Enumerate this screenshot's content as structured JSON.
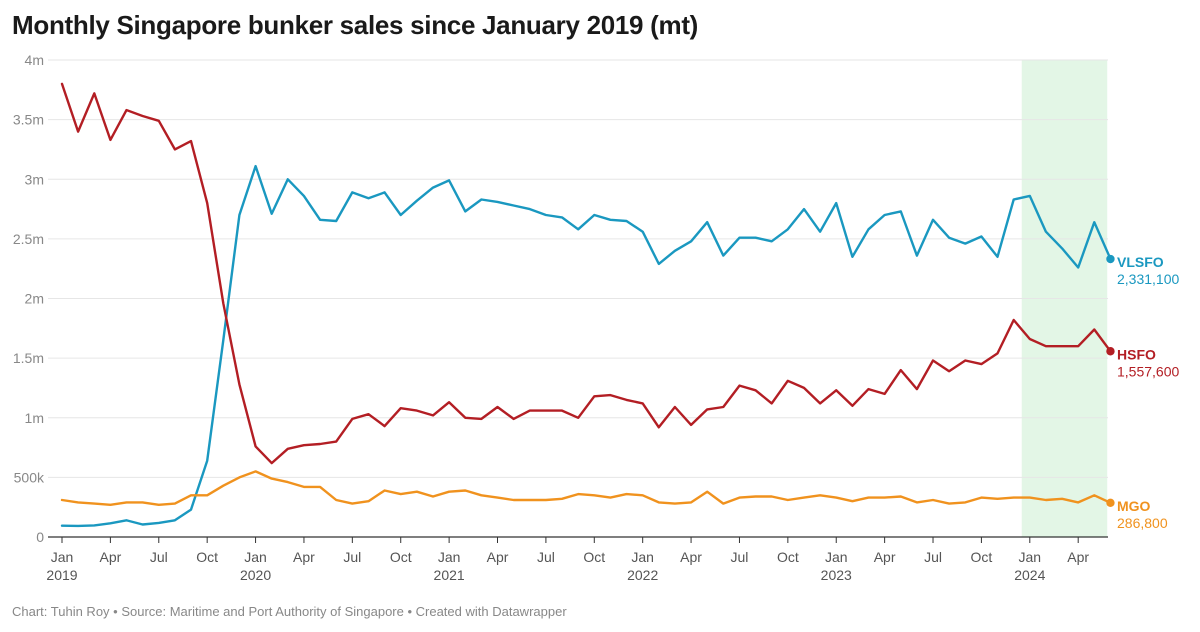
{
  "title": "Monthly Singapore bunker sales since January 2019 (mt)",
  "footer": "Chart: Tuhin Roy • Source: Maritime and Port Authority of Singapore • Created with Datawrapper",
  "chart_data": {
    "type": "line",
    "title": "Monthly Singapore bunker sales since January 2019 (mt)",
    "xlabel": "",
    "ylabel": "",
    "ylim": [
      0,
      4000000
    ],
    "yticks": [
      {
        "value": 0,
        "label": "0"
      },
      {
        "value": 500000,
        "label": "500k"
      },
      {
        "value": 1000000,
        "label": "1m"
      },
      {
        "value": 1500000,
        "label": "1.5m"
      },
      {
        "value": 2000000,
        "label": "2m"
      },
      {
        "value": 2500000,
        "label": "2.5m"
      },
      {
        "value": 3000000,
        "label": "3m"
      },
      {
        "value": 3500000,
        "label": "3.5m"
      },
      {
        "value": 4000000,
        "label": "4m"
      }
    ],
    "xticks": [
      {
        "index": 0,
        "label": "Jan",
        "year": "2019"
      },
      {
        "index": 3,
        "label": "Apr",
        "year": ""
      },
      {
        "index": 6,
        "label": "Jul",
        "year": ""
      },
      {
        "index": 9,
        "label": "Oct",
        "year": ""
      },
      {
        "index": 12,
        "label": "Jan",
        "year": "2020"
      },
      {
        "index": 15,
        "label": "Apr",
        "year": ""
      },
      {
        "index": 18,
        "label": "Jul",
        "year": ""
      },
      {
        "index": 21,
        "label": "Oct",
        "year": ""
      },
      {
        "index": 24,
        "label": "Jan",
        "year": "2021"
      },
      {
        "index": 27,
        "label": "Apr",
        "year": ""
      },
      {
        "index": 30,
        "label": "Jul",
        "year": ""
      },
      {
        "index": 33,
        "label": "Oct",
        "year": ""
      },
      {
        "index": 36,
        "label": "Jan",
        "year": "2022"
      },
      {
        "index": 39,
        "label": "Apr",
        "year": ""
      },
      {
        "index": 42,
        "label": "Jul",
        "year": ""
      },
      {
        "index": 45,
        "label": "Oct",
        "year": ""
      },
      {
        "index": 48,
        "label": "Jan",
        "year": "2023"
      },
      {
        "index": 51,
        "label": "Apr",
        "year": ""
      },
      {
        "index": 54,
        "label": "Jul",
        "year": ""
      },
      {
        "index": 57,
        "label": "Oct",
        "year": ""
      },
      {
        "index": 60,
        "label": "Jan",
        "year": "2024"
      },
      {
        "index": 63,
        "label": "Apr",
        "year": ""
      }
    ],
    "highlight_range": [
      59.5,
      64.8
    ],
    "highlight_color": "#e3f6e6",
    "series": [
      {
        "name": "VLSFO",
        "color": "#1a98c0",
        "end_label": "2,331,100",
        "values": [
          95000,
          93000,
          97000,
          115000,
          140000,
          105000,
          118000,
          140000,
          230000,
          640000,
          1650000,
          2700000,
          3110000,
          2710000,
          3000000,
          2860000,
          2660000,
          2650000,
          2890000,
          2840000,
          2890000,
          2700000,
          2820000,
          2930000,
          2990000,
          2730000,
          2830000,
          2810000,
          2780000,
          2750000,
          2700000,
          2680000,
          2580000,
          2700000,
          2660000,
          2650000,
          2560000,
          2290000,
          2400000,
          2480000,
          2640000,
          2360000,
          2510000,
          2510000,
          2480000,
          2580000,
          2750000,
          2560000,
          2800000,
          2350000,
          2580000,
          2700000,
          2730000,
          2360000,
          2660000,
          2510000,
          2460000,
          2520000,
          2350000,
          2830000,
          2860000,
          2560000,
          2420000,
          2260000,
          2640000,
          2331100
        ]
      },
      {
        "name": "HSFO",
        "color": "#b31e24",
        "end_label": "1,557,600",
        "values": [
          3800000,
          3400000,
          3720000,
          3330000,
          3580000,
          3530000,
          3490000,
          3250000,
          3320000,
          2800000,
          1960000,
          1280000,
          760000,
          620000,
          740000,
          770000,
          780000,
          800000,
          990000,
          1030000,
          930000,
          1080000,
          1060000,
          1020000,
          1130000,
          1000000,
          990000,
          1090000,
          990000,
          1060000,
          1060000,
          1060000,
          1000000,
          1180000,
          1190000,
          1150000,
          1120000,
          920000,
          1090000,
          940000,
          1070000,
          1090000,
          1270000,
          1230000,
          1120000,
          1310000,
          1250000,
          1120000,
          1230000,
          1100000,
          1240000,
          1200000,
          1400000,
          1240000,
          1480000,
          1390000,
          1480000,
          1450000,
          1540000,
          1820000,
          1660000,
          1600000,
          1600000,
          1600000,
          1740000,
          1557600
        ]
      },
      {
        "name": "MGO",
        "color": "#f0921e",
        "end_label": "286,800",
        "values": [
          310000,
          290000,
          280000,
          270000,
          290000,
          290000,
          270000,
          280000,
          350000,
          350000,
          430000,
          500000,
          550000,
          490000,
          460000,
          420000,
          420000,
          310000,
          280000,
          300000,
          390000,
          360000,
          380000,
          340000,
          380000,
          390000,
          350000,
          330000,
          310000,
          310000,
          310000,
          320000,
          360000,
          350000,
          330000,
          360000,
          350000,
          290000,
          280000,
          290000,
          380000,
          280000,
          330000,
          340000,
          340000,
          310000,
          330000,
          350000,
          330000,
          300000,
          330000,
          330000,
          340000,
          290000,
          310000,
          280000,
          290000,
          330000,
          320000,
          330000,
          330000,
          310000,
          320000,
          290000,
          350000,
          286800
        ]
      }
    ]
  }
}
